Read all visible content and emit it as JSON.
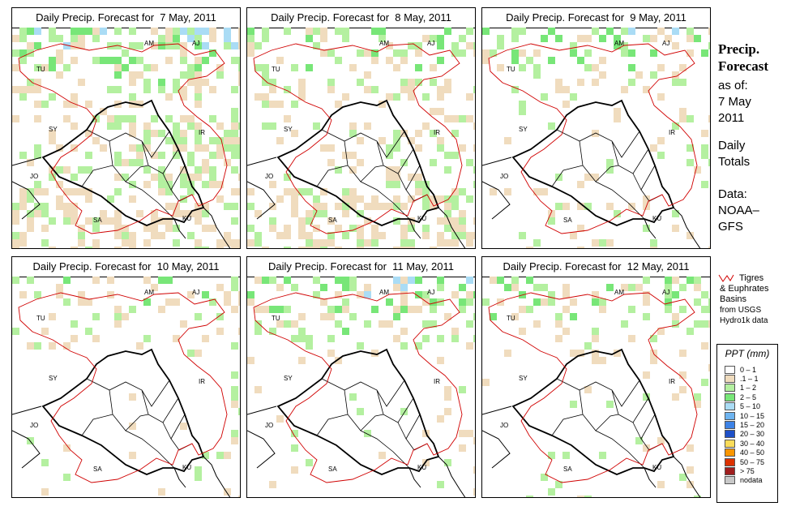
{
  "panels": [
    {
      "title": "Daily Precip. Forecast for  7 May, 2011",
      "seed": 7,
      "density": 0.55,
      "north_intensity": 3.2,
      "south_wet": 0.45,
      "central_wet": 0.55
    },
    {
      "title": "Daily Precip. Forecast for  8 May, 2011",
      "seed": 8,
      "density": 0.42,
      "north_intensity": 2.0,
      "south_wet": 0.55,
      "central_wet": 0.35
    },
    {
      "title": "Daily Precip. Forecast for  9 May, 2011",
      "seed": 9,
      "density": 0.32,
      "north_intensity": 2.2,
      "south_wet": 0.15,
      "central_wet": 0.1
    },
    {
      "title": "Daily Precip. Forecast for  10 May, 2011",
      "seed": 10,
      "density": 0.3,
      "north_intensity": 1.6,
      "south_wet": 0.05,
      "central_wet": 0.05
    },
    {
      "title": "Daily Precip. Forecast for  11 May, 2011",
      "seed": 11,
      "density": 0.42,
      "north_intensity": 2.6,
      "south_wet": 0.05,
      "central_wet": 0.08
    },
    {
      "title": "Daily Precip. Forecast for  12 May, 2011",
      "seed": 12,
      "density": 0.3,
      "north_intensity": 1.8,
      "south_wet": 0.05,
      "central_wet": 0.05
    }
  ],
  "map_labels": [
    "AM",
    "AJ",
    "TU",
    "SY",
    "IR",
    "JO",
    "SA",
    "KU"
  ],
  "side": {
    "title_line1": "Precip.",
    "title_line2": "Forecast",
    "asof": "as of:",
    "date_line1": "7 May",
    "date_line2": "2011",
    "totals_line1": "Daily",
    "totals_line2": "Totals",
    "data_line1": "Data:",
    "data_line2": "NOAA–",
    "data_line3": "GFS"
  },
  "basin_note": {
    "line1": "Tigres",
    "line2": "& Euphrates",
    "line3": "Basins",
    "line4": "from USGS",
    "line5": "Hydro1k data"
  },
  "legend": {
    "title": "PPT (mm)",
    "items": [
      {
        "label": "0 – 1",
        "color": "#ffffff"
      },
      {
        "label": ".1 – 1",
        "color": "#f0dcbe"
      },
      {
        "label": "1 – 2",
        "color": "#b4f0a0"
      },
      {
        "label": "2 – 5",
        "color": "#78e678"
      },
      {
        "label": "5 – 10",
        "color": "#aadcf5"
      },
      {
        "label": "10 – 15",
        "color": "#6eb4f0"
      },
      {
        "label": "15 – 20",
        "color": "#3c82e6"
      },
      {
        "label": "20 – 30",
        "color": "#1e50c8"
      },
      {
        "label": "30 – 40",
        "color": "#fadc5a"
      },
      {
        "label": "40 – 50",
        "color": "#fa9600"
      },
      {
        "label": "50 – 75",
        "color": "#dc3200"
      },
      {
        "label": "> 75",
        "color": "#a01e1e"
      },
      {
        "label": "nodata",
        "color": "#c8c8c8"
      }
    ]
  }
}
